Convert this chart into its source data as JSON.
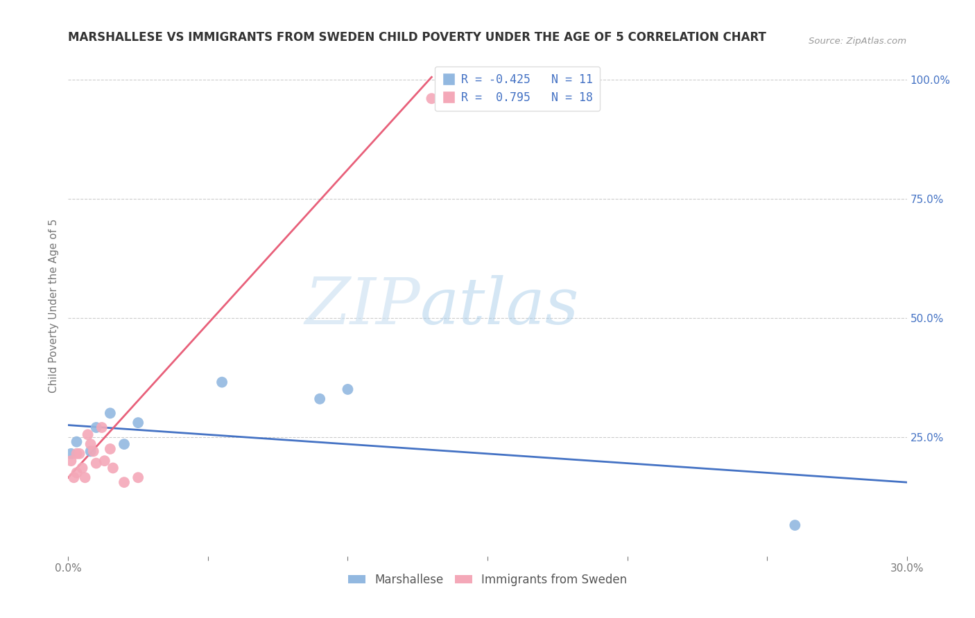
{
  "title": "MARSHALLESE VS IMMIGRANTS FROM SWEDEN CHILD POVERTY UNDER THE AGE OF 5 CORRELATION CHART",
  "source": "Source: ZipAtlas.com",
  "xlabel": "",
  "ylabel": "Child Poverty Under the Age of 5",
  "xlim": [
    0.0,
    0.3
  ],
  "ylim": [
    0.0,
    1.05
  ],
  "xticks": [
    0.0,
    0.05,
    0.1,
    0.15,
    0.2,
    0.25,
    0.3
  ],
  "xticklabels": [
    "0.0%",
    "",
    "",
    "",
    "",
    "",
    "30.0%"
  ],
  "yticks_right": [
    0.25,
    0.5,
    0.75,
    1.0
  ],
  "ytick_right_labels": [
    "25.0%",
    "50.0%",
    "75.0%",
    "100.0%"
  ],
  "blue_color": "#92b8e0",
  "pink_color": "#f4a8b8",
  "blue_line_color": "#4472c4",
  "pink_line_color": "#e8607a",
  "legend_r_blue": "-0.425",
  "legend_n_blue": "11",
  "legend_r_pink": " 0.795",
  "legend_n_pink": "18",
  "legend_label_blue": "Marshallese",
  "legend_label_pink": "Immigrants from Sweden",
  "watermark_zip": "ZIP",
  "watermark_atlas": "atlas",
  "background_color": "#ffffff",
  "blue_scatter_x": [
    0.001,
    0.003,
    0.008,
    0.01,
    0.015,
    0.02,
    0.025,
    0.055,
    0.09,
    0.26,
    0.1
  ],
  "blue_scatter_y": [
    0.215,
    0.24,
    0.22,
    0.27,
    0.3,
    0.235,
    0.28,
    0.365,
    0.33,
    0.065,
    0.35
  ],
  "pink_scatter_x": [
    0.001,
    0.002,
    0.003,
    0.003,
    0.004,
    0.005,
    0.006,
    0.007,
    0.008,
    0.009,
    0.01,
    0.012,
    0.013,
    0.015,
    0.016,
    0.02,
    0.025,
    0.13
  ],
  "pink_scatter_y": [
    0.2,
    0.165,
    0.215,
    0.175,
    0.215,
    0.185,
    0.165,
    0.255,
    0.235,
    0.22,
    0.195,
    0.27,
    0.2,
    0.225,
    0.185,
    0.155,
    0.165,
    0.96
  ],
  "trend_blue_x0": 0.0,
  "trend_blue_y0": 0.275,
  "trend_blue_x1": 0.3,
  "trend_blue_y1": 0.155,
  "trend_pink_x0": 0.0,
  "trend_pink_y0": 0.165,
  "trend_pink_x1": 0.13,
  "trend_pink_y1": 1.005
}
